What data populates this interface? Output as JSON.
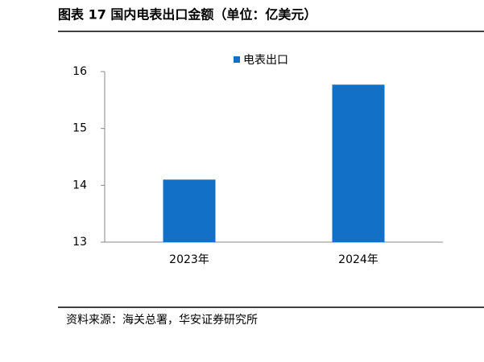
{
  "chart_data": {
    "type": "bar",
    "title": "图表 17 国内电表出口金额（单位：亿美元）",
    "categories": [
      "2023年",
      "2024年"
    ],
    "series": [
      {
        "name": "电表出口",
        "color": "#1270c6",
        "values": [
          14.1,
          15.77
        ]
      }
    ],
    "ylim": [
      13,
      16
    ],
    "yticks": [
      13,
      14,
      15,
      16
    ],
    "grid": false,
    "legend": "top",
    "source": "资料来源：海关总署，华安证券研究所"
  }
}
